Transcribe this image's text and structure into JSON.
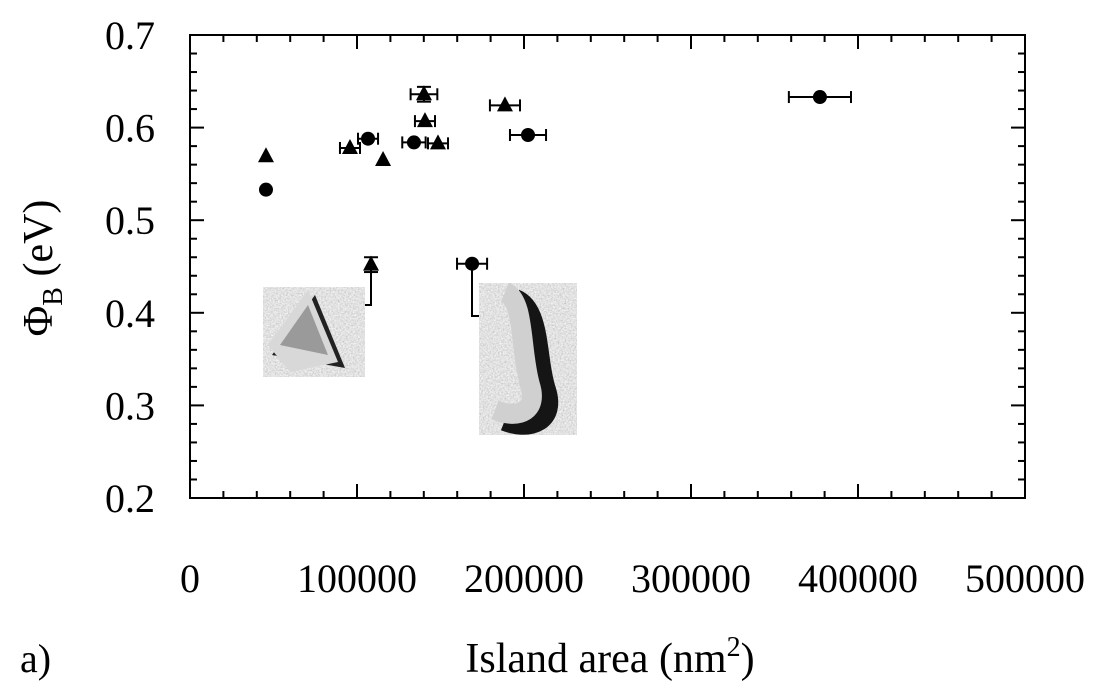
{
  "chart_data": {
    "type": "scatter",
    "panel_label": "a)",
    "x_label": {
      "text": "Island area (nm",
      "superscript": "2",
      "close": ")"
    },
    "y_label": {
      "symbol": "Φ",
      "subscript": "B",
      "unit": " (eV)"
    },
    "xlim": [
      0,
      500000
    ],
    "ylim": [
      0.2,
      0.7
    ],
    "xticks": [
      0,
      100000,
      200000,
      300000,
      400000,
      500000
    ],
    "yticks": [
      0.2,
      0.3,
      0.4,
      0.5,
      0.6,
      0.7
    ],
    "xminorticks": [
      20000,
      40000,
      60000,
      80000,
      120000,
      140000,
      160000,
      180000,
      220000,
      240000,
      260000,
      280000,
      320000,
      340000,
      360000,
      380000,
      420000,
      440000,
      460000,
      480000
    ],
    "yminorticks": [
      0.22,
      0.24,
      0.26,
      0.28,
      0.32,
      0.34,
      0.36,
      0.38,
      0.42,
      0.44,
      0.46,
      0.48,
      0.52,
      0.54,
      0.56,
      0.58,
      0.62,
      0.64,
      0.66,
      0.68
    ],
    "series": [
      {
        "marker": "triangle",
        "color": "#000000",
        "x": [
          45500,
          95800,
          115600,
          140100,
          140700,
          148500,
          188600,
          108400
        ],
        "values": [
          0.569,
          0.578,
          0.565,
          0.636,
          0.607,
          0.583,
          0.624,
          0.452
        ],
        "xerr": [
          null,
          6000,
          null,
          8000,
          6000,
          6000,
          9000,
          null
        ],
        "yerr": [
          null,
          null,
          null,
          0.008,
          null,
          null,
          null,
          0.008
        ]
      },
      {
        "marker": "circle",
        "color": "#000000",
        "x": [
          45500,
          106600,
          134100,
          202400,
          377200,
          168900
        ],
        "values": [
          0.533,
          0.588,
          0.584,
          0.592,
          0.633,
          0.453
        ],
        "xerr": [
          null,
          6000,
          7000,
          10800,
          18600,
          9000
        ],
        "yerr": [
          null,
          null,
          null,
          null,
          null,
          null
        ]
      }
    ]
  }
}
